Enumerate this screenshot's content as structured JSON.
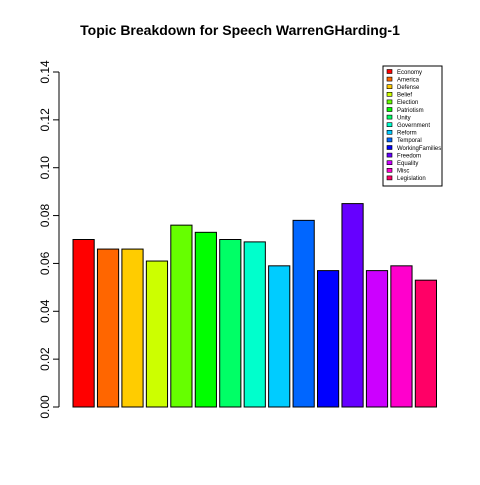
{
  "chart_data": {
    "type": "bar",
    "title": "Topic Breakdown for Speech WarrenGHarding-1",
    "xlabel": "",
    "ylabel": "",
    "ylim": [
      0,
      0.14
    ],
    "yticks": [
      "0.00",
      "0.02",
      "0.04",
      "0.06",
      "0.08",
      "0.10",
      "0.12",
      "0.14"
    ],
    "grid": false,
    "legend_position": "top-right",
    "categories": [
      "Economy",
      "America",
      "Defense",
      "Belief",
      "Election",
      "Patriotism",
      "Unity",
      "Government",
      "Reform",
      "Temporal",
      "WorkingFamilies",
      "Freedom",
      "Equality",
      "Misc",
      "Legislation"
    ],
    "values": [
      0.07,
      0.066,
      0.066,
      0.061,
      0.076,
      0.073,
      0.07,
      0.069,
      0.059,
      0.078,
      0.057,
      0.085,
      0.057,
      0.059,
      0.053
    ],
    "colors": [
      "#FF0000",
      "#FF6600",
      "#FFCC00",
      "#CCFF00",
      "#66FF00",
      "#00FF00",
      "#00FF66",
      "#00FFCC",
      "#00CCFF",
      "#0066FF",
      "#0000FF",
      "#6600FF",
      "#CC00FF",
      "#FF00CC",
      "#FF0066"
    ]
  }
}
